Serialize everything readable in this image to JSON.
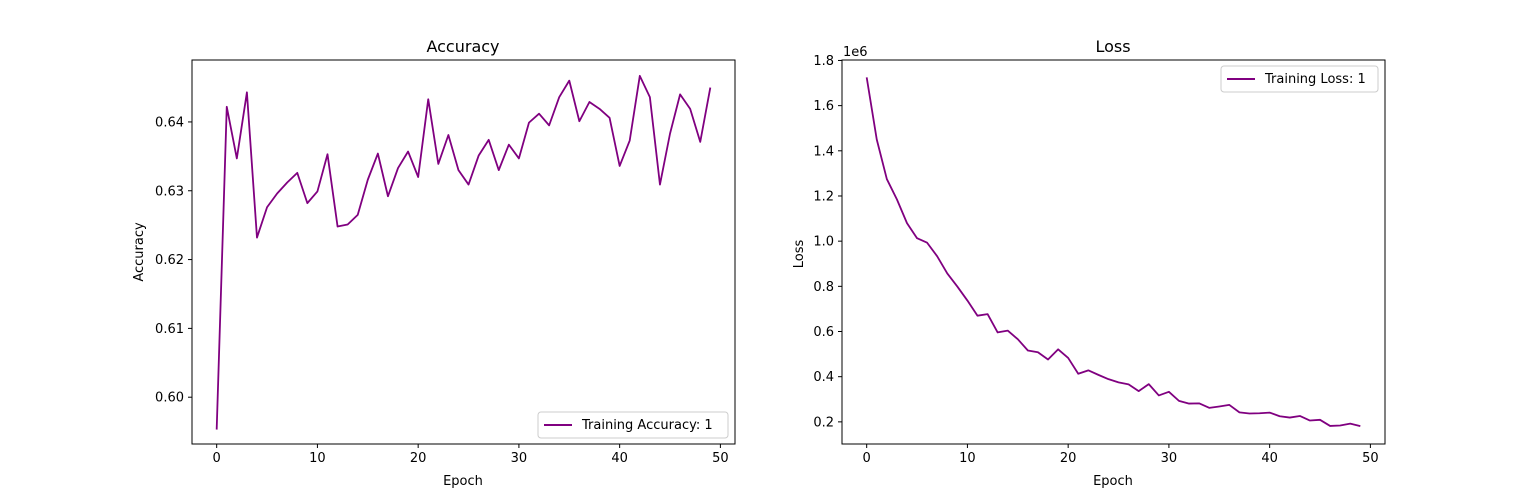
{
  "chart_data": [
    {
      "type": "line",
      "title": "Accuracy",
      "xlabel": "Epoch",
      "ylabel": "Accuracy",
      "xlim": [
        -2.45,
        51.45
      ],
      "ylim": [
        0.5932,
        0.649
      ],
      "xticks": [
        0,
        10,
        20,
        30,
        40,
        50
      ],
      "yticks": [
        0.6,
        0.61,
        0.62,
        0.63,
        0.64
      ],
      "ytick_labels": [
        "0.60",
        "0.61",
        "0.62",
        "0.63",
        "0.64"
      ],
      "xtick_labels": [
        "0",
        "10",
        "20",
        "30",
        "40",
        "50"
      ],
      "legend": "lower right",
      "series": [
        {
          "name": "Training Accuracy: 1",
          "color": "#800080",
          "x": [
            0,
            1,
            2,
            3,
            4,
            5,
            6,
            7,
            8,
            9,
            10,
            11,
            12,
            13,
            14,
            15,
            16,
            17,
            18,
            19,
            20,
            21,
            22,
            23,
            24,
            25,
            26,
            27,
            28,
            29,
            30,
            31,
            32,
            33,
            34,
            35,
            36,
            37,
            38,
            39,
            40,
            41,
            42,
            43,
            44,
            45,
            46,
            47,
            48,
            49
          ],
          "y": [
            0.5953,
            0.6422,
            0.6347,
            0.6443,
            0.6232,
            0.6276,
            0.6296,
            0.6312,
            0.6326,
            0.6282,
            0.6299,
            0.6353,
            0.6248,
            0.6251,
            0.6265,
            0.6316,
            0.6354,
            0.6292,
            0.6333,
            0.6357,
            0.632,
            0.6433,
            0.6339,
            0.6381,
            0.633,
            0.6309,
            0.6351,
            0.6374,
            0.633,
            0.6367,
            0.6347,
            0.6399,
            0.6412,
            0.6395,
            0.6436,
            0.646,
            0.6401,
            0.6429,
            0.6419,
            0.6406,
            0.6336,
            0.6373,
            0.6467,
            0.6436,
            0.6309,
            0.6383,
            0.644,
            0.6419,
            0.6371,
            0.645
          ]
        }
      ]
    },
    {
      "type": "line",
      "title": "Loss",
      "xlabel": "Epoch",
      "ylabel": "Loss",
      "offset_text": "1e6",
      "xlim": [
        -2.45,
        51.45
      ],
      "ylim": [
        0.102,
        1.802
      ],
      "xticks": [
        0,
        10,
        20,
        30,
        40,
        50
      ],
      "yticks": [
        0.2,
        0.4,
        0.6,
        0.8,
        1.0,
        1.2,
        1.4,
        1.6,
        1.8
      ],
      "ytick_labels": [
        "0.2",
        "0.4",
        "0.6",
        "0.8",
        "1.0",
        "1.2",
        "1.4",
        "1.6",
        "1.8"
      ],
      "xtick_labels": [
        "0",
        "10",
        "20",
        "30",
        "40",
        "50"
      ],
      "legend": "upper right",
      "series": [
        {
          "name": "Training Loss: 1",
          "color": "#800080",
          "x": [
            0,
            1,
            2,
            3,
            4,
            5,
            6,
            7,
            8,
            9,
            10,
            11,
            12,
            13,
            14,
            15,
            16,
            17,
            18,
            19,
            20,
            21,
            22,
            23,
            24,
            25,
            26,
            27,
            28,
            29,
            30,
            31,
            32,
            33,
            34,
            35,
            36,
            37,
            38,
            39,
            40,
            41,
            42,
            43,
            44,
            45,
            46,
            47,
            48,
            49
          ],
          "y": [
            1.725,
            1.45,
            1.275,
            1.185,
            1.08,
            1.013,
            0.993,
            0.933,
            0.857,
            0.799,
            0.737,
            0.67,
            0.677,
            0.596,
            0.604,
            0.566,
            0.516,
            0.508,
            0.476,
            0.521,
            0.483,
            0.413,
            0.428,
            0.408,
            0.389,
            0.375,
            0.366,
            0.336,
            0.367,
            0.317,
            0.333,
            0.293,
            0.281,
            0.282,
            0.262,
            0.268,
            0.275,
            0.242,
            0.237,
            0.238,
            0.241,
            0.225,
            0.219,
            0.226,
            0.206,
            0.209,
            0.182,
            0.184,
            0.192,
            0.181
          ]
        }
      ]
    }
  ]
}
